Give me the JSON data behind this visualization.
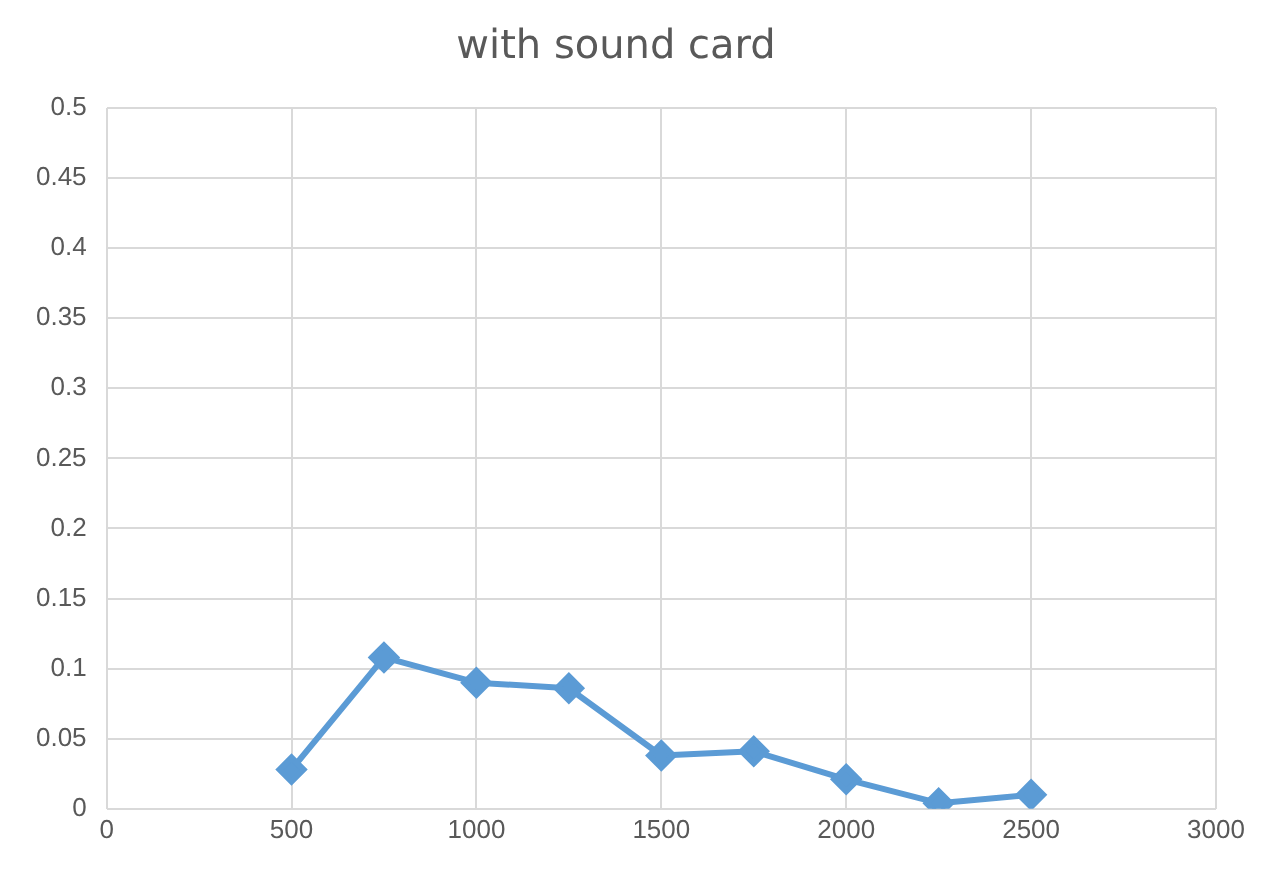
{
  "chart_data": {
    "type": "line",
    "title": "with sound card",
    "x": [
      500,
      750,
      1000,
      1250,
      1500,
      1750,
      2000,
      2250,
      2500
    ],
    "series": [
      {
        "color": "#5b9bd5",
        "values": [
          0.028,
          0.108,
          0.09,
          0.086,
          0.038,
          0.041,
          0.021,
          0.004,
          0.01
        ]
      }
    ],
    "xlim": [
      0,
      3000
    ],
    "xticks": [
      0,
      500,
      1000,
      1500,
      2000,
      2500,
      3000
    ],
    "ylim": [
      0,
      0.5
    ],
    "yticks": [
      0,
      0.05,
      0.1,
      0.15,
      0.2,
      0.25,
      0.3,
      0.35,
      0.4,
      0.45,
      0.5
    ],
    "grid": true,
    "legend": false,
    "marker": "diamond",
    "line_style": "solid"
  }
}
